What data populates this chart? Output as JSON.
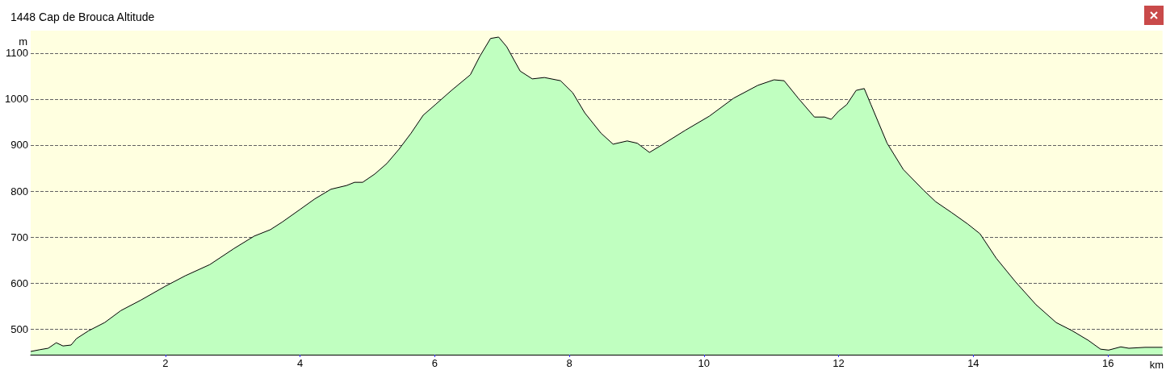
{
  "chart_data": {
    "type": "area",
    "title": "1448 Cap de Brouca Altitude",
    "xlabel": "km",
    "ylabel": "m",
    "x": [
      0,
      0.14,
      0.26,
      0.38,
      0.48,
      0.6,
      0.68,
      0.86,
      1.1,
      1.34,
      1.64,
      2.0,
      2.3,
      2.66,
      3.02,
      3.32,
      3.56,
      3.74,
      4.0,
      4.22,
      4.46,
      4.69,
      4.81,
      4.93,
      5.11,
      5.29,
      5.47,
      5.65,
      5.83,
      6.01,
      6.25,
      6.53,
      6.67,
      6.83,
      6.95,
      7.07,
      7.27,
      7.45,
      7.63,
      7.87,
      8.05,
      8.23,
      8.47,
      8.65,
      8.86,
      9.01,
      9.19,
      9.37,
      9.72,
      10.08,
      10.44,
      10.8,
      11.04,
      11.19,
      11.4,
      11.64,
      11.79,
      11.89,
      12.0,
      12.12,
      12.26,
      12.38,
      12.48,
      12.72,
      12.96,
      13.26,
      13.44,
      13.68,
      13.92,
      14.1,
      14.34,
      14.63,
      14.93,
      15.23,
      15.47,
      15.71,
      15.89,
      16.01,
      16.19,
      16.31,
      16.55,
      16.81
    ],
    "series": [
      {
        "color": "#c0ffc0",
        "values": [
          451,
          455,
          458,
          470,
          463,
          465,
          479,
          496,
          514,
          540,
          563,
          593,
          616,
          640,
          675,
          702,
          716,
          733,
          760,
          783,
          804,
          812,
          819,
          819,
          837,
          860,
          891,
          926,
          965,
          988,
          1019,
          1053,
          1093,
          1132,
          1135,
          1114,
          1061,
          1044,
          1047,
          1040,
          1014,
          970,
          926,
          902,
          909,
          904,
          884,
          900,
          932,
          963,
          1002,
          1030,
          1042,
          1040,
          1002,
          961,
          961,
          956,
          974,
          988,
          1019,
          1023,
          988,
          904,
          847,
          802,
          777,
          753,
          728,
          707,
          654,
          602,
          553,
          514,
          496,
          475,
          456,
          454,
          461,
          458,
          460,
          460
        ]
      }
    ],
    "xlim": [
      0,
      16.81
    ],
    "xticks": [
      2,
      4,
      6,
      8,
      10,
      12,
      14,
      16
    ],
    "ylim": [
      444,
      1149
    ],
    "yticks": [
      500,
      600,
      700,
      800,
      900,
      1000,
      1100
    ],
    "grid": "y",
    "marker": "none",
    "line_style": "solid"
  }
}
